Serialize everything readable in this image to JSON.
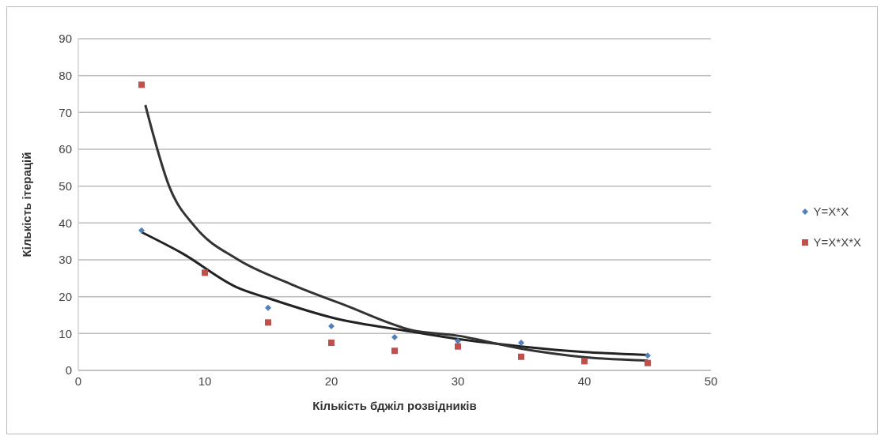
{
  "chart_data": {
    "type": "scatter",
    "xlabel": "Кількість бджіл розвідників",
    "ylabel": "Кількість ітерацій",
    "x": [
      5,
      10,
      15,
      20,
      25,
      30,
      35,
      40,
      45
    ],
    "series": [
      {
        "name": "Y=X*X",
        "color": "#4f81bd",
        "marker": "diamond",
        "values": [
          38,
          null,
          17,
          12,
          9,
          8,
          7.5,
          null,
          4
        ]
      },
      {
        "name": "Y=X*X*X",
        "color": "#c0504d",
        "marker": "square",
        "values": [
          77.5,
          26.5,
          13,
          7.5,
          5.3,
          6.5,
          3.7,
          2.5,
          2
        ]
      },
      {
        "type": "line",
        "color": "#222222",
        "x": [
          5,
          8.2,
          12.5,
          15.1,
          20.2,
          26.4,
          30,
          35,
          40,
          45
        ],
        "values": [
          37.5,
          31.8,
          22.6,
          19.5,
          14.2,
          10.5,
          8.5,
          6.5,
          5,
          4.2
        ]
      },
      {
        "type": "line",
        "color": "#333333",
        "x": [
          5.3,
          7.2,
          9.3,
          12.5,
          16.8,
          21,
          26.4,
          30,
          35,
          40,
          45
        ],
        "values": [
          72,
          49.8,
          38.7,
          30.3,
          23.4,
          17.8,
          10.9,
          9.4,
          5.9,
          3.6,
          2.7
        ]
      }
    ],
    "xlim": [
      0,
      50
    ],
    "xticks": [
      0,
      10,
      20,
      30,
      40,
      50
    ],
    "ylim": [
      0,
      90
    ],
    "yticks": [
      0,
      10,
      20,
      30,
      40,
      50,
      60,
      70,
      80,
      90
    ],
    "grid": "y",
    "legend": "right",
    "line_style": "solid"
  }
}
